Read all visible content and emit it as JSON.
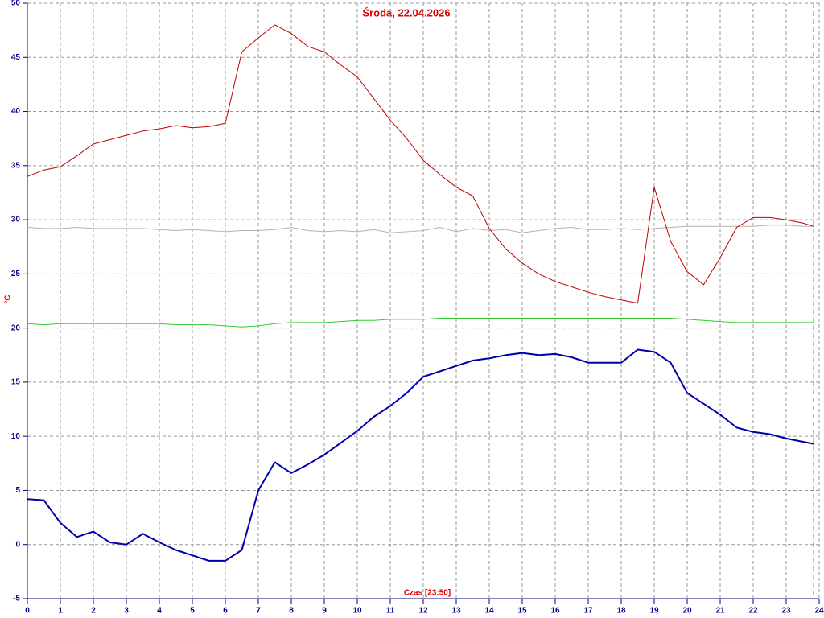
{
  "chart_data": {
    "type": "line",
    "title": "Środa, 22.04.2026",
    "y_label": "°C",
    "x_label": "Czas [23:50]",
    "x": [
      0,
      0.5,
      1,
      1.5,
      2,
      2.5,
      3,
      3.5,
      4,
      4.5,
      5,
      5.5,
      6,
      6.5,
      7,
      7.5,
      8,
      8.5,
      9,
      9.5,
      10,
      10.5,
      11,
      11.5,
      12,
      12.5,
      13,
      13.5,
      14,
      14.5,
      15,
      15.5,
      16,
      16.5,
      17,
      17.5,
      18,
      18.5,
      19,
      19.5,
      20,
      20.5,
      21,
      21.5,
      22,
      22.5,
      23,
      23.5,
      23.83
    ],
    "series": [
      {
        "color": "#b4b4b4",
        "width": 1,
        "values": [
          29.3,
          29.2,
          29.2,
          29.3,
          29.2,
          29.2,
          29.2,
          29.2,
          29.1,
          29.0,
          29.1,
          29.0,
          28.9,
          29.0,
          29.0,
          29.1,
          29.3,
          29.0,
          28.9,
          29.0,
          28.9,
          29.1,
          28.8,
          28.9,
          29.0,
          29.3,
          28.9,
          29.2,
          29.0,
          29.1,
          28.8,
          29.0,
          29.2,
          29.3,
          29.1,
          29.1,
          29.2,
          29.1,
          29.2,
          29.3,
          29.4,
          29.4,
          29.4,
          29.4,
          29.4,
          29.5,
          29.5,
          29.4,
          29.4
        ]
      },
      {
        "color": "#33cc33",
        "width": 1,
        "values": [
          20.4,
          20.3,
          20.4,
          20.4,
          20.4,
          20.4,
          20.4,
          20.4,
          20.4,
          20.3,
          20.3,
          20.3,
          20.2,
          20.1,
          20.2,
          20.4,
          20.5,
          20.5,
          20.5,
          20.6,
          20.7,
          20.7,
          20.8,
          20.8,
          20.8,
          20.9,
          20.9,
          20.9,
          20.9,
          20.9,
          20.9,
          20.9,
          20.9,
          20.9,
          20.9,
          20.9,
          20.9,
          20.9,
          20.9,
          20.9,
          20.8,
          20.7,
          20.6,
          20.5,
          20.5,
          20.5,
          20.5,
          20.5,
          20.5
        ]
      },
      {
        "color": "#c00000",
        "width": 1,
        "values": [
          34.0,
          34.6,
          34.9,
          35.9,
          37.0,
          37.4,
          37.8,
          38.2,
          38.4,
          38.7,
          38.5,
          38.6,
          38.9,
          45.5,
          46.8,
          48.0,
          47.2,
          46.0,
          45.5,
          44.3,
          43.2,
          41.2,
          39.2,
          37.5,
          35.5,
          34.2,
          33.0,
          32.2,
          29.2,
          27.3,
          26.0,
          25.0,
          24.3,
          23.8,
          23.3,
          22.9,
          22.6,
          22.3,
          33.0,
          28.0,
          25.2,
          24.0,
          26.5,
          29.3,
          30.2,
          30.2,
          30.0,
          29.7,
          29.4
        ]
      },
      {
        "color": "#0000aa",
        "width": 2,
        "values": [
          4.2,
          4.1,
          2.0,
          0.7,
          1.2,
          0.2,
          0.0,
          1.0,
          0.2,
          -0.5,
          -1.0,
          -1.5,
          -1.5,
          -0.5,
          5.0,
          7.6,
          6.6,
          7.4,
          8.3,
          9.4,
          10.5,
          11.8,
          12.8,
          14.0,
          15.5,
          16.0,
          16.5,
          17.0,
          17.2,
          17.5,
          17.7,
          17.5,
          17.6,
          17.3,
          16.8,
          16.8,
          16.8,
          18.0,
          17.8,
          16.8,
          14.0,
          13.0,
          12.0,
          10.8,
          10.4,
          10.2,
          9.8,
          9.5,
          9.3
        ]
      }
    ],
    "marker_x": 23.83,
    "marker_color": "#33aa33",
    "xlim": [
      0,
      24
    ],
    "xticks": [
      0,
      1,
      2,
      3,
      4,
      5,
      6,
      7,
      8,
      9,
      10,
      11,
      12,
      13,
      14,
      15,
      16,
      17,
      18,
      19,
      20,
      21,
      22,
      23,
      24
    ],
    "ylim": [
      -5,
      50
    ],
    "yticks": [
      -5,
      0,
      5,
      10,
      15,
      20,
      25,
      30,
      35,
      40,
      45,
      50
    ],
    "grid": true
  }
}
